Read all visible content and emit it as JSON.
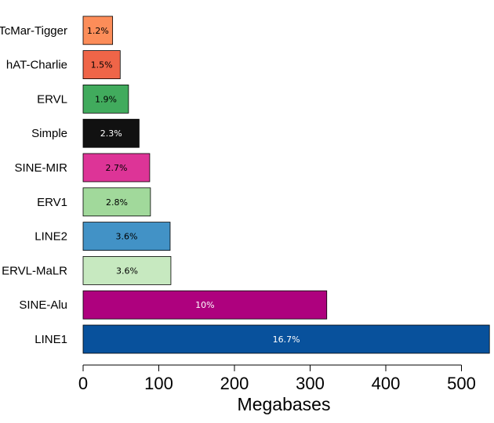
{
  "chart_data": {
    "type": "bar",
    "orientation": "horizontal",
    "title": "",
    "xlabel": "Megabases",
    "ylabel": "",
    "xlim": [
      0,
      540
    ],
    "xticks": [
      0,
      100,
      200,
      300,
      400,
      500
    ],
    "grid": false,
    "categories": [
      "LINE1",
      "SINE-Alu",
      "ERVL-MaLR",
      "LINE2",
      "ERV1",
      "SINE-MIR",
      "Simple",
      "ERVL",
      "hAT-Charlie",
      "TcMar-Tigger"
    ],
    "values": [
      537,
      322,
      116,
      115,
      89,
      88,
      74,
      60,
      49,
      39
    ],
    "data_labels": [
      "16.7%",
      "10%",
      "3.6%",
      "3.6%",
      "2.8%",
      "2.7%",
      "2.3%",
      "1.9%",
      "1.5%",
      "1.2%"
    ],
    "colors": [
      "#08519c",
      "#ae017e",
      "#c7e9c0",
      "#4292c6",
      "#a1d99b",
      "#dd3497",
      "#111111",
      "#41ab5d",
      "#ef6548",
      "#fc8d59"
    ],
    "label_colors": [
      "#ffffff",
      "#ffffff",
      "#000000",
      "#000000",
      "#000000",
      "#000000",
      "#ffffff",
      "#000000",
      "#000000",
      "#000000"
    ]
  }
}
